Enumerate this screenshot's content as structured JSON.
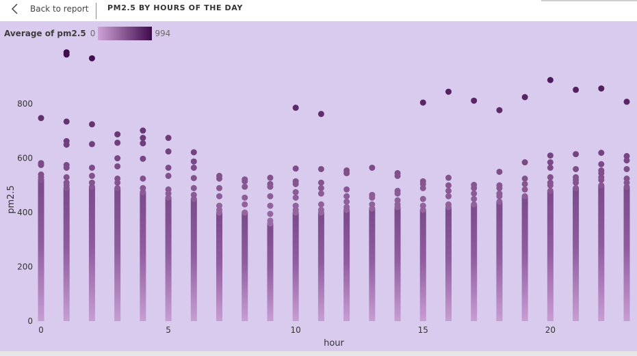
{
  "topbar": {
    "back_label": "Back to report",
    "title": "PM2.5 BY HOURS OF THE DAY"
  },
  "legend": {
    "title": "Average of pm2.5",
    "min_label": "0",
    "max_label": "994",
    "color_low": "#cfa3d6",
    "color_high": "#3f0a4c"
  },
  "colors": {
    "panel_background": "#d8cbee",
    "axis_text": "#333333"
  },
  "chart_data": {
    "type": "scatter",
    "xlabel": "hour",
    "ylabel": "pm2.5",
    "xlim": [
      0,
      23
    ],
    "ylim": [
      0,
      994
    ],
    "x_ticks": [
      0,
      5,
      10,
      15,
      20
    ],
    "y_ticks": [
      0,
      200,
      400,
      600,
      800
    ],
    "grid": false,
    "legend_placement": "top-left",
    "color_scale": "pm2.5 value (0 to 994)",
    "series": [
      {
        "hour": 0,
        "dense_max": 520,
        "points": [
          748,
          582,
          575,
          540,
          530,
          520
        ]
      },
      {
        "hour": 1,
        "dense_max": 490,
        "points": [
          990,
          982,
          735,
          663,
          650,
          575,
          565,
          530,
          510,
          500
        ]
      },
      {
        "hour": 2,
        "dense_max": 495,
        "points": [
          968,
          725,
          652,
          565,
          535,
          510
        ]
      },
      {
        "hour": 3,
        "dense_max": 490,
        "points": [
          688,
          657,
          600,
          570,
          525,
          510
        ]
      },
      {
        "hour": 4,
        "dense_max": 475,
        "points": [
          702,
          675,
          655,
          598,
          525,
          490
        ]
      },
      {
        "hour": 5,
        "dense_max": 455,
        "points": [
          675,
          625,
          565,
          535,
          485,
          470
        ]
      },
      {
        "hour": 6,
        "dense_max": 450,
        "points": [
          622,
          588,
          565,
          527,
          490,
          465
        ]
      },
      {
        "hour": 7,
        "dense_max": 400,
        "points": [
          535,
          525,
          490,
          460,
          425,
          410
        ]
      },
      {
        "hour": 8,
        "dense_max": 400,
        "points": [
          522,
          515,
          495,
          455,
          430
        ]
      },
      {
        "hour": 9,
        "dense_max": 360,
        "points": [
          528,
          505,
          495,
          460,
          425,
          395,
          370
        ]
      },
      {
        "hour": 10,
        "dense_max": 400,
        "points": [
          786,
          562,
          515,
          505,
          475,
          455,
          425,
          410
        ]
      },
      {
        "hour": 11,
        "dense_max": 400,
        "points": [
          763,
          560,
          510,
          490,
          470,
          430,
          410
        ]
      },
      {
        "hour": 12,
        "dense_max": 410,
        "points": [
          555,
          545,
          485,
          460,
          440,
          420
        ]
      },
      {
        "hour": 13,
        "dense_max": 415,
        "points": [
          565,
          465,
          455,
          430
        ]
      },
      {
        "hour": 14,
        "dense_max": 420,
        "points": [
          545,
          535,
          480,
          470,
          445,
          430
        ]
      },
      {
        "hour": 15,
        "dense_max": 410,
        "points": [
          805,
          515,
          505,
          490,
          450,
          425
        ]
      },
      {
        "hour": 16,
        "dense_max": 420,
        "points": [
          845,
          528,
          500,
          480,
          460,
          430
        ]
      },
      {
        "hour": 17,
        "dense_max": 430,
        "points": [
          812,
          502,
          490,
          470,
          450
        ]
      },
      {
        "hour": 18,
        "dense_max": 440,
        "points": [
          777,
          550,
          500,
          490,
          470,
          460
        ]
      },
      {
        "hour": 19,
        "dense_max": 460,
        "points": [
          825,
          585,
          525,
          505,
          485
        ]
      },
      {
        "hour": 20,
        "dense_max": 480,
        "points": [
          888,
          610,
          585,
          565,
          530,
          510,
          500
        ]
      },
      {
        "hour": 21,
        "dense_max": 490,
        "points": [
          852,
          615,
          560,
          530,
          520,
          510
        ]
      },
      {
        "hour": 22,
        "dense_max": 500,
        "points": [
          857,
          620,
          578,
          555,
          545,
          530,
          520
        ]
      },
      {
        "hour": 23,
        "dense_max": 495,
        "points": [
          808,
          608,
          592,
          560,
          525,
          510
        ]
      }
    ]
  }
}
